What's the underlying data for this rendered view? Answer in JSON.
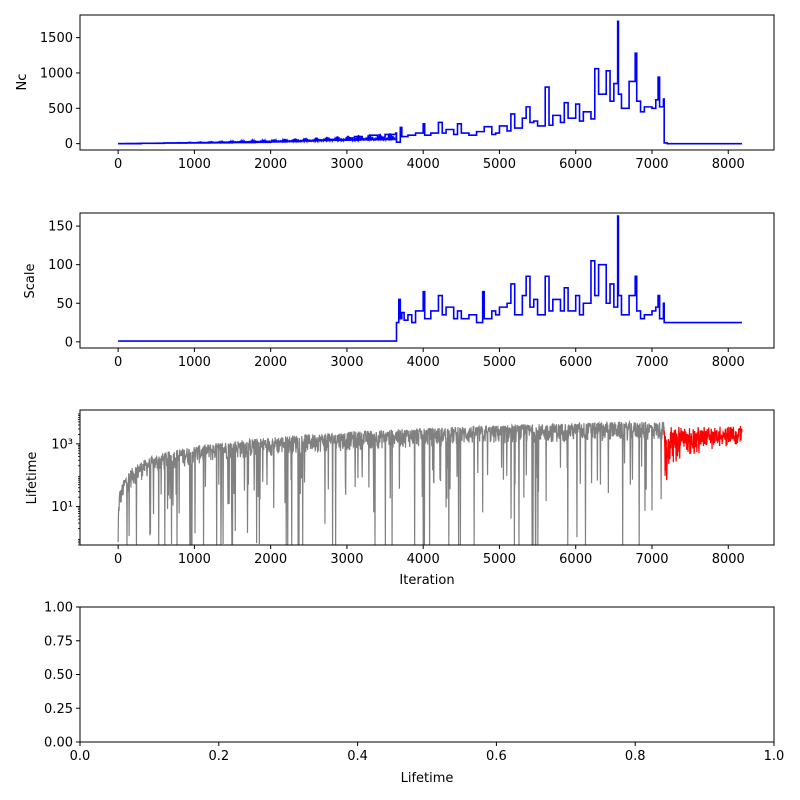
{
  "colors": {
    "primary_series": "#0000ff",
    "lifetime_series": "#808080",
    "highlight_series": "#ff0000",
    "axes": "#000000",
    "background": "#ffffff"
  },
  "chart_data": [
    {
      "type": "line",
      "ylabel": "Nc",
      "xlabel": "",
      "xlim": [
        -500,
        8600
      ],
      "ylim": [
        -90,
        1820
      ],
      "xticks": [
        0,
        1000,
        2000,
        3000,
        4000,
        5000,
        6000,
        7000,
        8000
      ],
      "yticks": [
        0,
        500,
        1000,
        1500
      ],
      "grid": false,
      "series": [
        {
          "color": "#0000ff",
          "x": [
            0,
            300,
            600,
            900,
            1200,
            1500,
            1800,
            2000,
            2200,
            2400,
            2600,
            2800,
            3000,
            3100,
            3200,
            3300,
            3400,
            3500,
            3640,
            3650,
            3700,
            3720,
            3800,
            3900,
            4000,
            4020,
            4100,
            4200,
            4250,
            4300,
            4400,
            4450,
            4500,
            4600,
            4700,
            4800,
            4900,
            4950,
            5000,
            5100,
            5150,
            5200,
            5300,
            5350,
            5400,
            5450,
            5500,
            5600,
            5650,
            5700,
            5800,
            5850,
            5900,
            6000,
            6050,
            6100,
            6200,
            6250,
            6300,
            6400,
            6450,
            6500,
            6550,
            6560,
            6600,
            6700,
            6780,
            6800,
            6850,
            6900,
            7000,
            7050,
            7080,
            7100,
            7150,
            7160,
            7200,
            8180
          ],
          "y": [
            0,
            5,
            8,
            10,
            12,
            15,
            18,
            25,
            30,
            40,
            50,
            60,
            80,
            100,
            60,
            120,
            90,
            130,
            150,
            20,
            230,
            100,
            120,
            150,
            280,
            120,
            150,
            300,
            150,
            200,
            130,
            280,
            150,
            120,
            170,
            240,
            130,
            150,
            250,
            180,
            420,
            220,
            360,
            520,
            300,
            320,
            250,
            800,
            260,
            400,
            300,
            580,
            360,
            560,
            320,
            450,
            350,
            1060,
            700,
            1030,
            600,
            850,
            1730,
            700,
            500,
            880,
            1280,
            600,
            450,
            520,
            500,
            620,
            940,
            520,
            630,
            10,
            0,
            0
          ]
        }
      ]
    },
    {
      "type": "line",
      "ylabel": "Scale",
      "xlabel": "",
      "xlim": [
        -500,
        8600
      ],
      "ylim": [
        -8,
        167
      ],
      "xticks": [
        0,
        1000,
        2000,
        3000,
        4000,
        5000,
        6000,
        7000,
        8000
      ],
      "yticks": [
        0,
        50,
        100,
        150
      ],
      "grid": false,
      "series": [
        {
          "color": "#0000ff",
          "x": [
            0,
            3640,
            3650,
            3680,
            3700,
            3720,
            3750,
            3800,
            3850,
            3900,
            4000,
            4020,
            4100,
            4200,
            4250,
            4300,
            4400,
            4450,
            4500,
            4600,
            4700,
            4780,
            4800,
            4900,
            4950,
            5000,
            5100,
            5150,
            5200,
            5300,
            5350,
            5400,
            5450,
            5500,
            5600,
            5650,
            5700,
            5800,
            5850,
            5900,
            6000,
            6050,
            6100,
            6200,
            6250,
            6300,
            6400,
            6450,
            6500,
            6550,
            6560,
            6600,
            6700,
            6780,
            6800,
            6850,
            6900,
            7000,
            7050,
            7080,
            7100,
            7150,
            7160,
            7200,
            8180
          ],
          "y": [
            1,
            1,
            25,
            55,
            30,
            38,
            28,
            35,
            25,
            40,
            65,
            30,
            40,
            60,
            35,
            45,
            30,
            40,
            30,
            35,
            25,
            65,
            30,
            40,
            35,
            45,
            50,
            75,
            35,
            60,
            85,
            45,
            55,
            35,
            85,
            40,
            55,
            40,
            70,
            40,
            60,
            35,
            50,
            105,
            60,
            100,
            50,
            75,
            45,
            163,
            60,
            35,
            60,
            85,
            40,
            30,
            35,
            40,
            45,
            60,
            30,
            50,
            25,
            25,
            25
          ]
        }
      ]
    },
    {
      "type": "line",
      "ylabel": "Lifetime",
      "xlabel": "Iteration",
      "yscale": "log",
      "xlim": [
        -500,
        8600
      ],
      "ylim": [
        0.6,
        12000
      ],
      "xticks": [
        0,
        1000,
        2000,
        3000,
        4000,
        5000,
        6000,
        7000,
        8000
      ],
      "yticks": [
        10,
        1000
      ],
      "ytick_labels": [
        "10¹",
        "10³"
      ],
      "grid": false,
      "series": [
        {
          "color": "#808080",
          "x_range": [
            0,
            7160
          ],
          "envelope_top": "growing from ~1 at 0 to ~5000 near 7000",
          "drops_to": 0.6
        },
        {
          "color": "#ff0000",
          "x_range": [
            7160,
            8180
          ],
          "values_range": [
            30,
            6000
          ]
        }
      ]
    },
    {
      "type": "line",
      "ylabel": "",
      "xlabel": "Lifetime",
      "xlim": [
        0,
        1
      ],
      "ylim": [
        0,
        1
      ],
      "xticks": [
        0.0,
        0.2,
        0.4,
        0.6,
        0.8,
        1.0
      ],
      "yticks": [
        0.0,
        0.25,
        0.5,
        0.75,
        1.0
      ],
      "xtick_labels": [
        "0.0",
        "0.2",
        "0.4",
        "0.6",
        "0.8",
        "1.0"
      ],
      "ytick_labels": [
        "0.00",
        "0.25",
        "0.50",
        "0.75",
        "1.00"
      ],
      "grid": false,
      "series": []
    }
  ]
}
